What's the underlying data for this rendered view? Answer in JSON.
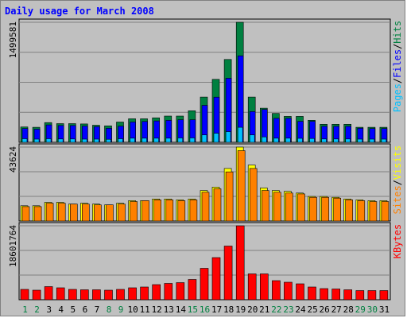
{
  "chart_data": {
    "type": "bar",
    "title": "Daily usage for March 2008",
    "categories": [
      "1",
      "2",
      "3",
      "4",
      "5",
      "6",
      "7",
      "8",
      "9",
      "10",
      "11",
      "12",
      "13",
      "14",
      "15",
      "16",
      "17",
      "18",
      "19",
      "20",
      "21",
      "22",
      "23",
      "24",
      "25",
      "26",
      "27",
      "28",
      "29",
      "30",
      "31"
    ],
    "weekend_days": [
      "1",
      "2",
      "8",
      "9",
      "15",
      "16",
      "22",
      "23",
      "29",
      "30"
    ],
    "colors": {
      "title": "#0000ff",
      "hits": "#008040",
      "files": "#0000ff",
      "pages": "#00c0ff",
      "visits": "#ffff00",
      "sites": "#ff8000",
      "kbytes": "#ff0000",
      "weekday_label": "#000000",
      "weekend_label": "#008040",
      "background": "#c0c0c0",
      "plot_background": "#c0c0c0"
    },
    "panels": [
      {
        "name": "hits-files-pages",
        "ymax_label": "1499581",
        "ymax": 1499581,
        "grid": true,
        "legend": [
          {
            "text": "Pages",
            "color_key": "pages"
          },
          {
            "text": "/",
            "color_key": "separator"
          },
          {
            "text": "Files",
            "color_key": "files"
          },
          {
            "text": "/",
            "color_key": "separator"
          },
          {
            "text": "Hits",
            "color_key": "hits"
          }
        ],
        "series": [
          {
            "name": "Hits",
            "color_key": "hits",
            "values": [
              192000,
              188000,
              246000,
              233000,
              233000,
              229000,
              214000,
              206000,
              253000,
              294000,
              294000,
              306000,
              328000,
              328000,
              394000,
              565000,
              787000,
              1035000,
              1499581,
              565000,
              426000,
              360000,
              324000,
              324000,
              275000,
              225000,
              225000,
              225000,
              188000,
              188000,
              188000
            ]
          },
          {
            "name": "Files",
            "color_key": "files",
            "values": [
              172000,
              164000,
              217000,
              210000,
              210000,
              203000,
              196000,
              176000,
              202000,
              253000,
              260000,
              267000,
              274000,
              282000,
              282000,
              462000,
              564000,
              800000,
              1080000,
              384000,
              410000,
              300000,
              300000,
              262000,
              262000,
              200000,
              200000,
              200000,
              176000,
              172000,
              172000
            ]
          },
          {
            "name": "Pages",
            "color_key": "pages",
            "values": [
              45000,
              40000,
              45000,
              42000,
              42000,
              40000,
              40000,
              38000,
              45000,
              52000,
              52000,
              52000,
              52000,
              55000,
              55000,
              92000,
              113000,
              133000,
              188000,
              92000,
              68000,
              52000,
              52000,
              50000,
              48000,
              42000,
              42000,
              42000,
              40000,
              40000,
              40000
            ]
          }
        ]
      },
      {
        "name": "visits-sites",
        "ymax_label": "43624",
        "ymax": 43624,
        "grid": true,
        "legend": [
          {
            "text": "Sites",
            "color_key": "sites"
          },
          {
            "text": "/",
            "color_key": "separator"
          },
          {
            "text": "Visits",
            "color_key": "visits"
          }
        ],
        "series": [
          {
            "name": "Visits",
            "color_key": "visits",
            "values": [
              9000,
              9000,
              11000,
              11000,
              10000,
              10500,
              10000,
              9500,
              10500,
              12000,
              12000,
              13000,
              13000,
              12500,
              13000,
              18000,
              20000,
              31000,
              43624,
              33000,
              19500,
              18000,
              17500,
              16500,
              14500,
              14500,
              14000,
              13000,
              12500,
              12000,
              12000
            ]
          },
          {
            "name": "Sites",
            "color_key": "sites",
            "values": [
              8500,
              8500,
              10500,
              10500,
              10000,
              10000,
              9500,
              9500,
              10000,
              11500,
              12000,
              12500,
              12500,
              12000,
              12500,
              17000,
              19000,
              29000,
              41500,
              31000,
              18000,
              17000,
              16500,
              16000,
              14000,
              14000,
              13500,
              12500,
              12000,
              11500,
              11500
            ]
          }
        ]
      },
      {
        "name": "kbytes",
        "ymax_label": "18601764",
        "ymax": 18601764,
        "grid": true,
        "legend": [
          {
            "text": "KBytes",
            "color_key": "kbytes"
          }
        ],
        "series": [
          {
            "name": "KBytes",
            "color_key": "kbytes",
            "values": [
              2600000,
              2400000,
              3300000,
              3000000,
              2600000,
              2500000,
              2500000,
              2400000,
              2600000,
              3000000,
              3200000,
              3800000,
              4100000,
              4300000,
              5100000,
              7900000,
              10600000,
              13500000,
              18601764,
              6500000,
              6500000,
              4800000,
              4400000,
              4000000,
              3200000,
              2800000,
              2700000,
              2500000,
              2300000,
              2300000,
              2300000
            ]
          }
        ]
      }
    ]
  }
}
